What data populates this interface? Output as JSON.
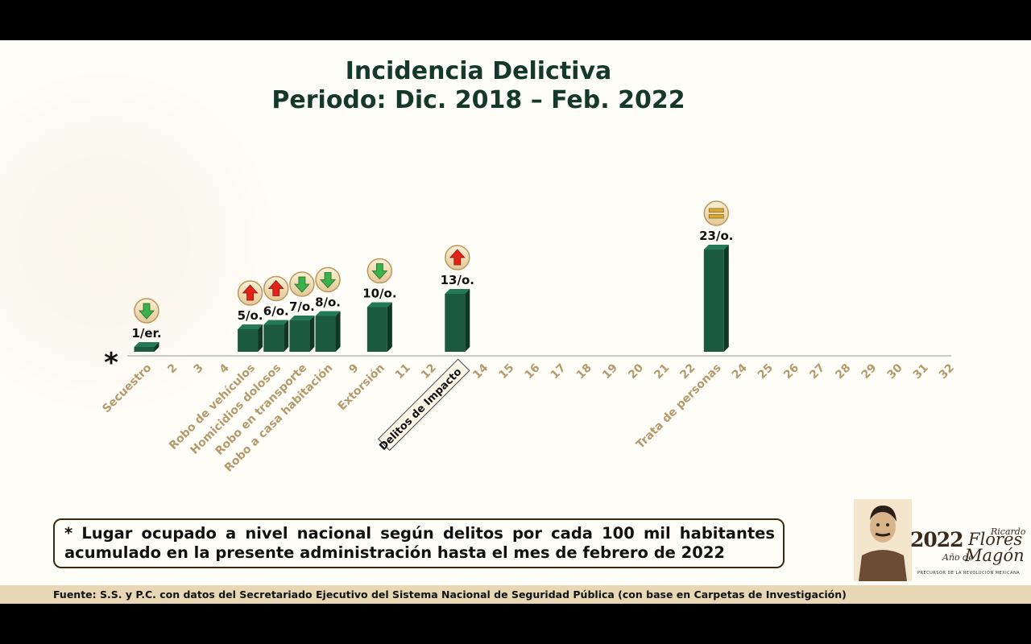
{
  "title_line1": "Incidencia Delictiva",
  "title_line2": "Periodo: Dic. 2018 – Feb. 2022",
  "axis_marker": "*",
  "colors": {
    "bar": "#1b5a3f",
    "title": "#14382a",
    "tick_label": "#b49a6b",
    "arrow_up": "#e2231a",
    "arrow_down": "#3cb04a",
    "badge": "#f0dcb0",
    "footer_bg": "#e8d7b4"
  },
  "chart_data": {
    "type": "bar",
    "title": "Incidencia Delictiva",
    "subtitle": "Periodo: Dic. 2018 – Feb. 2022",
    "xlabel": "Lugar ocupado a nivel nacional",
    "ylabel": "",
    "x_range": [
      1,
      32
    ],
    "tick_labels": [
      "Secuestro",
      "2",
      "3",
      "4",
      "Robo de vehículos",
      "Homicidios dolosos",
      "Robo en transporte",
      "Robo a casa habitación",
      "9",
      "Extorsión",
      "11",
      "12",
      "Delitos de Impacto",
      "14",
      "15",
      "16",
      "17",
      "18",
      "19",
      "20",
      "21",
      "22",
      "Trata de personas",
      "24",
      "25",
      "26",
      "27",
      "28",
      "29",
      "30",
      "31",
      "32"
    ],
    "highlight_tick": "Delitos de Impacto",
    "series": [
      {
        "name": "Secuestro",
        "rank": 1,
        "label": "1/er.",
        "trend": "down"
      },
      {
        "name": "Robo de vehículos",
        "rank": 5,
        "label": "5/o.",
        "trend": "up"
      },
      {
        "name": "Homicidios dolosos",
        "rank": 6,
        "label": "6/o.",
        "trend": "up"
      },
      {
        "name": "Robo en transporte",
        "rank": 7,
        "label": "7/o.",
        "trend": "down"
      },
      {
        "name": "Robo a casa habitación",
        "rank": 8,
        "label": "8/o.",
        "trend": "down"
      },
      {
        "name": "Extorsión",
        "rank": 10,
        "label": "10/o.",
        "trend": "down"
      },
      {
        "name": "Delitos de Impacto",
        "rank": 13,
        "label": "13/o.",
        "trend": "up"
      },
      {
        "name": "Trata de personas",
        "rank": 23,
        "label": "23/o.",
        "trend": "equal"
      }
    ]
  },
  "note": {
    "text": "* Lugar ocupado a nivel nacional según delitos por cada 100 mil habitantes acumulado en la presente administración hasta el mes de febrero de 2022"
  },
  "footer": {
    "source": "Fuente: S.S. y P.C. con datos del Secretariado Ejecutivo del Sistema Nacional de Seguridad Pública (con base en Carpetas de Investigación)"
  },
  "logo": {
    "year": "2022",
    "ano_de": "Año de",
    "name_first": "Ricardo",
    "name_middle": "Flores",
    "name_last": "Magón",
    "tagline": "PRECURSOR DE LA REVOLUCIÓN MEXICANA"
  }
}
